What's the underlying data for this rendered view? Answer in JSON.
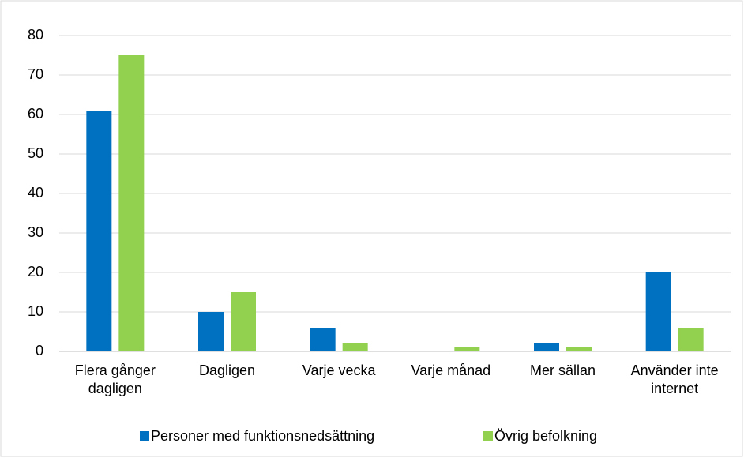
{
  "chart_data": {
    "type": "bar",
    "categories": [
      "Flera gånger dagligen",
      "Dagligen",
      "Varje vecka",
      "Varje månad",
      "Mer sällan",
      "Använder inte internet"
    ],
    "series": [
      {
        "name": "Personer med funktionsnedsättning",
        "color": "#0070c0",
        "values": [
          61,
          10,
          6,
          0,
          2,
          20
        ]
      },
      {
        "name": "Övrig befolkning",
        "color": "#92d050",
        "values": [
          75,
          15,
          2,
          1,
          1,
          6
        ]
      }
    ],
    "ylim": [
      0,
      80
    ],
    "yticks": [
      0,
      10,
      20,
      30,
      40,
      50,
      60,
      70,
      80
    ],
    "grid": true,
    "legend": "bottom"
  }
}
